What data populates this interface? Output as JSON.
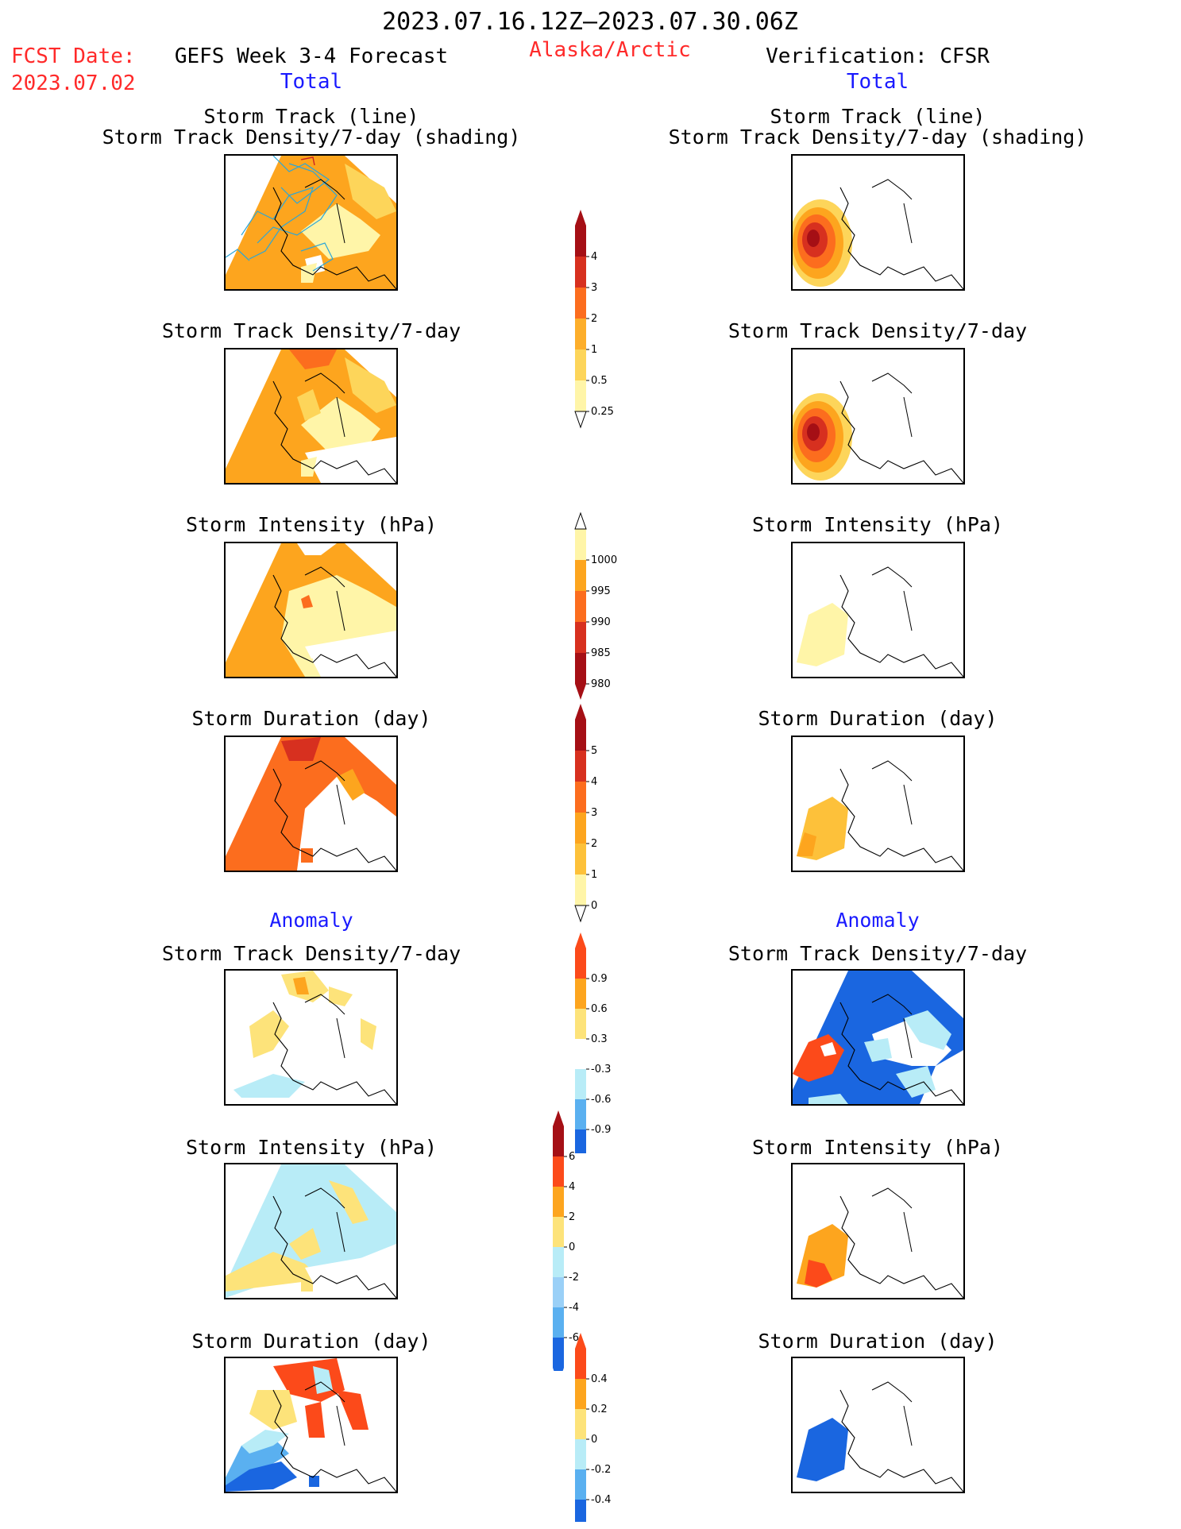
{
  "header": {
    "period": "2023.07.16.12Z–2023.07.30.06Z",
    "fcst_label": "FCST Date:",
    "fcst_date": "2023.07.02",
    "left_title": "GEFS Week 3-4 Forecast",
    "region": "Alaska/Arctic",
    "right_title": "Verification: CFSR",
    "left_sub": "Total",
    "right_sub": "Total"
  },
  "sections": {
    "anomaly_left": "Anomaly",
    "anomaly_right": "Anomaly"
  },
  "panel_titles": {
    "track_line": "Storm Track (line)",
    "track_shading": "Storm Track Density/7-day (shading)",
    "density": "Storm Track Density/7-day",
    "intensity": "Storm Intensity (hPa)",
    "duration": "Storm Duration (day)"
  },
  "colorbars": {
    "density": {
      "labels": [
        "4",
        "3",
        "2",
        "1",
        "0.5",
        "0.25"
      ],
      "colors": [
        "#a50f15",
        "#d7301f",
        "#fc6d1e",
        "#fdae2b",
        "#fdd55a",
        "#fff5a8"
      ]
    },
    "intensity": {
      "labels": [
        "1000",
        "995",
        "990",
        "985",
        "980"
      ],
      "colors": [
        "#fff5a8",
        "#fda51e",
        "#fc6d1e",
        "#d7301f",
        "#a50f15"
      ]
    },
    "duration": {
      "labels": [
        "5",
        "4",
        "3",
        "2",
        "1",
        "0"
      ],
      "colors": [
        "#a50f15",
        "#d7301f",
        "#fc6d1e",
        "#fda51e",
        "#fdc13a",
        "#fff5a8"
      ]
    },
    "anom_density": {
      "labels": [
        "0.9",
        "0.6",
        "0.3",
        "-0.3",
        "-0.6",
        "-0.9"
      ],
      "colors": [
        "#fc4a1a",
        "#fda51e",
        "#fde37a",
        "#ffffff",
        "#b8ecf7",
        "#5ab0f0",
        "#1a66e0"
      ]
    },
    "anom_intensity": {
      "labels": [
        "6",
        "4",
        "2",
        "0",
        "-2",
        "-4",
        "-6"
      ],
      "colors": [
        "#a50f15",
        "#fc4a1a",
        "#fda51e",
        "#fde37a",
        "#b8ecf7",
        "#9ad0f7",
        "#5ab0f0",
        "#1a66e0"
      ]
    },
    "anom_duration": {
      "labels": [
        "0.4",
        "0.2",
        "0",
        "-0.2",
        "-0.4"
      ],
      "colors": [
        "#fc4a1a",
        "#fda51e",
        "#fde37a",
        "#b8ecf7",
        "#5ab0f0",
        "#1a66e0"
      ]
    }
  }
}
